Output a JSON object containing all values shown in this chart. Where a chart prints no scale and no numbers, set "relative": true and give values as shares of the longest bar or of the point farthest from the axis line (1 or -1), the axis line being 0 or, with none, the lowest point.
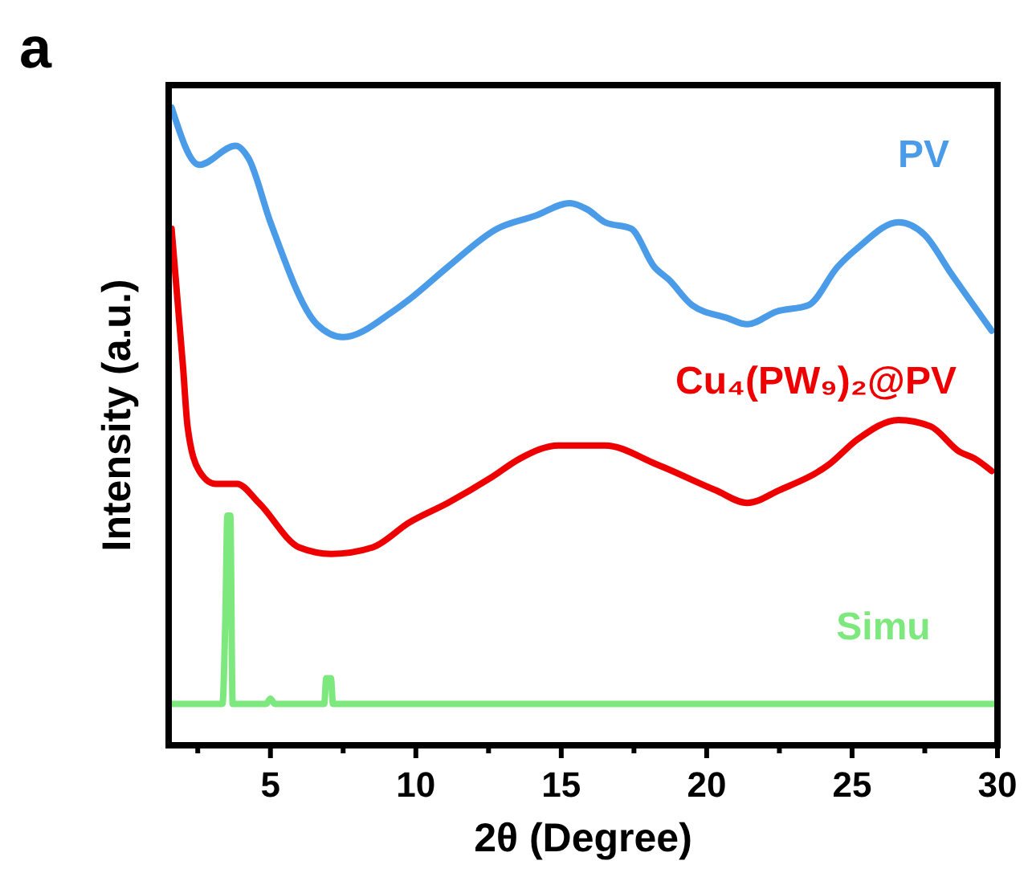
{
  "chart_data": {
    "type": "line",
    "relative": true,
    "xlabel": "2θ (Degree)",
    "ylabel": "Intensity (a.u.)",
    "annotations": [
      "a"
    ],
    "tick_labels": "x",
    "xlim": [
      1.5,
      30
    ],
    "xticks": [
      {
        "value": 2.5,
        "label": null
      },
      5,
      {
        "value": 7.5,
        "label": null
      },
      10,
      {
        "value": 12.5,
        "label": null
      },
      15,
      {
        "value": 17.5,
        "label": null
      },
      20,
      {
        "value": 22.5,
        "label": null
      },
      25,
      {
        "value": 27.5,
        "label": null
      },
      30
    ],
    "series": [
      {
        "name": "PV",
        "color": "#4a9be8",
        "x": [
          1.6,
          2.55,
          3.8,
          4.25,
          5.0,
          6.6,
          7.5,
          9.2,
          9.8,
          11.1,
          12.8,
          14.1,
          15.3,
          15.9,
          16.5,
          17.4,
          18.2,
          18.7,
          19.5,
          20.7,
          21.4,
          22.4,
          23.5,
          24.5,
          25.2,
          26.6,
          27.5,
          28.4,
          29.8
        ],
        "values": [
          1,
          0.91,
          0.94,
          0.92,
          0.82,
          0.66,
          0.64,
          0.68,
          0.7,
          0.75,
          0.81,
          0.83,
          0.85,
          0.84,
          0.82,
          0.81,
          0.75,
          0.73,
          0.69,
          0.67,
          0.66,
          0.68,
          0.69,
          0.75,
          0.78,
          0.82,
          0.8,
          0.74,
          0.65
        ]
      },
      {
        "name": "Cu₄(PW₉)₂@PV",
        "color": "#ee0000",
        "x": [
          1.6,
          2.0,
          2.15,
          2.55,
          3.1,
          3.85,
          4.6,
          6.0,
          7.1,
          8.5,
          9.8,
          11.1,
          12.6,
          13.6,
          14.9,
          16.5,
          18.3,
          20.3,
          21.4,
          22.5,
          24.2,
          25.2,
          26.6,
          27.7,
          28.7,
          29.2,
          29.8
        ],
        "values": [
          0.81,
          0.59,
          0.5,
          0.43,
          0.41,
          0.41,
          0.38,
          0.31,
          0.3,
          0.31,
          0.35,
          0.38,
          0.42,
          0.45,
          0.47,
          0.47,
          0.44,
          0.4,
          0.38,
          0.4,
          0.44,
          0.48,
          0.51,
          0.5,
          0.46,
          0.45,
          0.43
        ]
      },
      {
        "name": "Simu",
        "color": "#7de87d",
        "x": [
          1.5,
          3.35,
          3.45,
          3.52,
          3.62,
          3.7,
          4.85,
          5.0,
          5.15,
          6.85,
          6.92,
          7.08,
          7.15,
          30
        ],
        "values": [
          0.065,
          0.065,
          0.2,
          0.36,
          0.36,
          0.065,
          0.065,
          0.073,
          0.065,
          0.065,
          0.105,
          0.105,
          0.065,
          0.065
        ]
      }
    ]
  }
}
